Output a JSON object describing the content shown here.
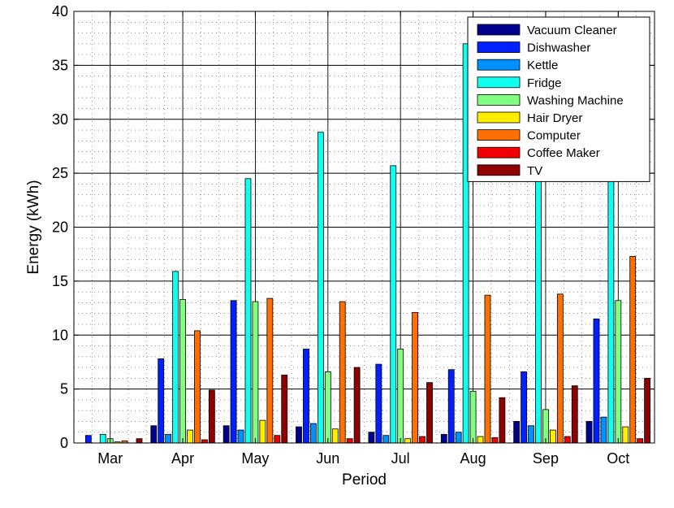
{
  "chart_data": {
    "type": "bar",
    "title": "",
    "xlabel": "Period",
    "ylabel": "Energy (kWh)",
    "ylim": [
      0,
      40
    ],
    "yticks": [
      0,
      5,
      10,
      15,
      20,
      25,
      30,
      35,
      40
    ],
    "grid": true,
    "legend_position": "top-right",
    "categories": [
      "Mar",
      "Apr",
      "May",
      "Jun",
      "Jul",
      "Aug",
      "Sep",
      "Oct"
    ],
    "series": [
      {
        "name": "Vacuum Cleaner",
        "color": "#00008f",
        "values": [
          0,
          1.6,
          1.6,
          1.5,
          1.0,
          0.8,
          2.0,
          2.0
        ]
      },
      {
        "name": "Dishwasher",
        "color": "#0020ff",
        "values": [
          0.7,
          7.8,
          13.2,
          8.7,
          7.3,
          6.8,
          6.6,
          11.5
        ]
      },
      {
        "name": "Kettle",
        "color": "#0090ff",
        "values": [
          0,
          0.8,
          1.2,
          1.8,
          0.7,
          1.0,
          1.6,
          2.4
        ]
      },
      {
        "name": "Fridge",
        "color": "#10ffef",
        "values": [
          0.8,
          15.9,
          24.5,
          28.8,
          25.7,
          37.0,
          36.0,
          38.0
        ]
      },
      {
        "name": "Washing Machine",
        "color": "#80ff80",
        "values": [
          0.4,
          13.3,
          13.1,
          6.6,
          8.7,
          4.8,
          3.1,
          13.2
        ]
      },
      {
        "name": "Hair Dryer",
        "color": "#ffee00",
        "values": [
          0.1,
          1.2,
          2.1,
          1.3,
          0.4,
          0.6,
          1.2,
          1.5
        ]
      },
      {
        "name": "Computer",
        "color": "#ff7000",
        "values": [
          0.2,
          10.4,
          13.4,
          13.1,
          12.1,
          13.7,
          13.8,
          17.3
        ]
      },
      {
        "name": "Coffee Maker",
        "color": "#f00000",
        "values": [
          0,
          0.3,
          0.7,
          0.4,
          0.6,
          0.5,
          0.6,
          0.4
        ]
      },
      {
        "name": "TV",
        "color": "#8f0000",
        "values": [
          0.4,
          4.9,
          6.3,
          7.0,
          5.6,
          4.2,
          5.3,
          6.0
        ]
      }
    ]
  }
}
